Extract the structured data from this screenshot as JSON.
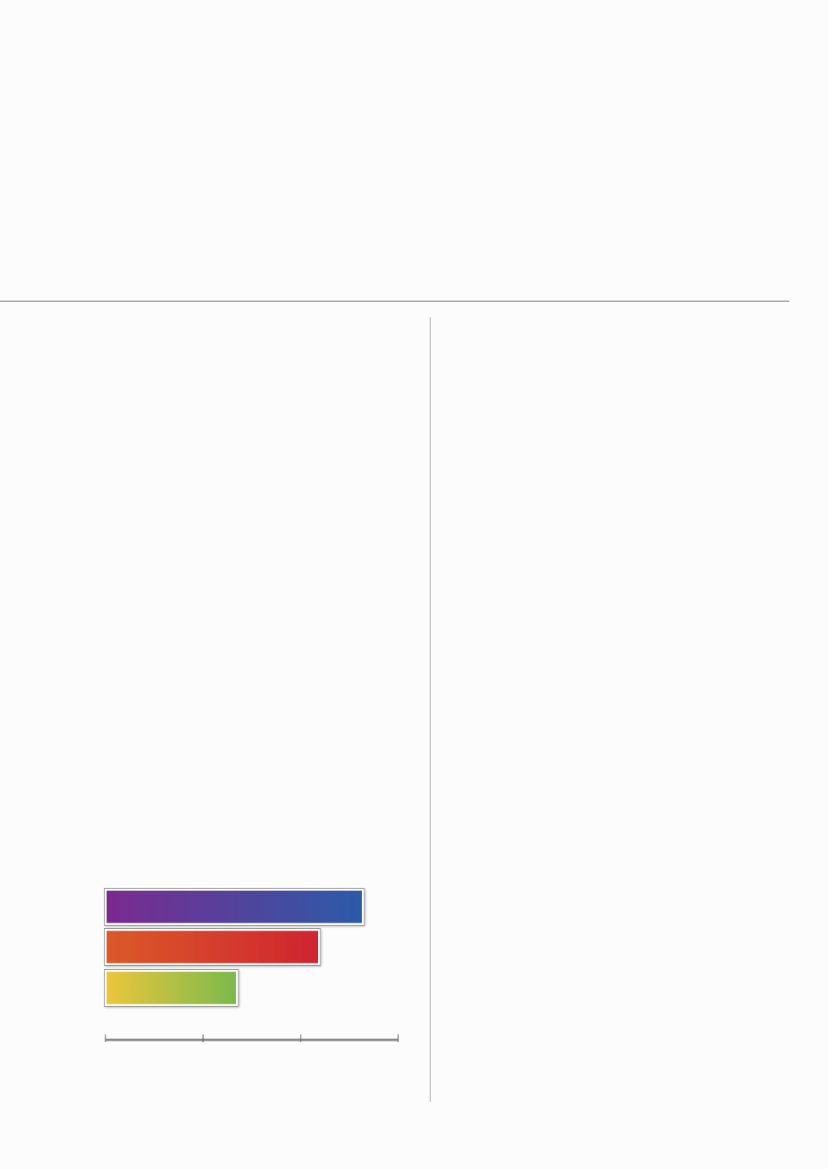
{
  "chart_data": {
    "type": "bar",
    "orientation": "horizontal",
    "categories": [
      null,
      null,
      null
    ],
    "values": [
      2.64,
      2.19,
      1.35
    ],
    "colors": [
      [
        "#7b2a8f",
        "#2b5ba8"
      ],
      [
        "#db5a2a",
        "#cf2430"
      ],
      [
        "#ecc63c",
        "#7ab94c"
      ]
    ],
    "xlim": [
      0,
      3
    ],
    "xticks": [
      0,
      1,
      2,
      3
    ]
  }
}
